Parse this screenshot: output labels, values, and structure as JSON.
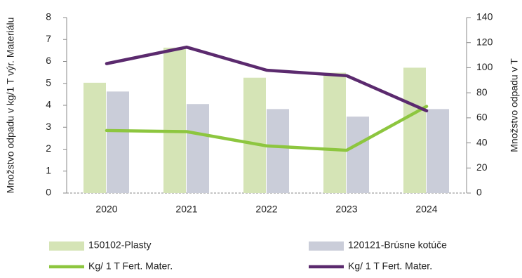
{
  "chart_data": {
    "type": "bar",
    "ylabel": "Množstvo odpadu v kg/1 T výr. Materiálu",
    "y2label": "Množstvo odpadu v T",
    "categories": [
      "2020",
      "2021",
      "2022",
      "2023",
      "2024"
    ],
    "ylim": [
      0,
      8
    ],
    "yticks": [
      0,
      1,
      2,
      3,
      4,
      5,
      6,
      7,
      8
    ],
    "y2lim": [
      0,
      140
    ],
    "y2ticks": [
      0,
      20,
      40,
      60,
      80,
      100,
      120,
      140
    ],
    "series": [
      {
        "name": "150102-Plasty",
        "type": "bar",
        "axis": "y2",
        "color": "#d5e4b6",
        "values": [
          88,
          116,
          92,
          96,
          100
        ]
      },
      {
        "name": "120121-Brúsne kotúče",
        "type": "bar",
        "axis": "y2",
        "color": "#cacdd9",
        "values": [
          81,
          71,
          67,
          61,
          67
        ]
      },
      {
        "name": "Kg/ 1 T Fert. Mater.",
        "type": "line",
        "color": "#8dc63f",
        "values": [
          2.85,
          2.8,
          2.15,
          1.95,
          3.95
        ]
      },
      {
        "name": "Kg/ 1 T Fert. Mater.",
        "type": "line",
        "color": "#5b2a6e",
        "values": [
          5.9,
          6.65,
          5.6,
          5.35,
          3.75
        ]
      }
    ]
  }
}
